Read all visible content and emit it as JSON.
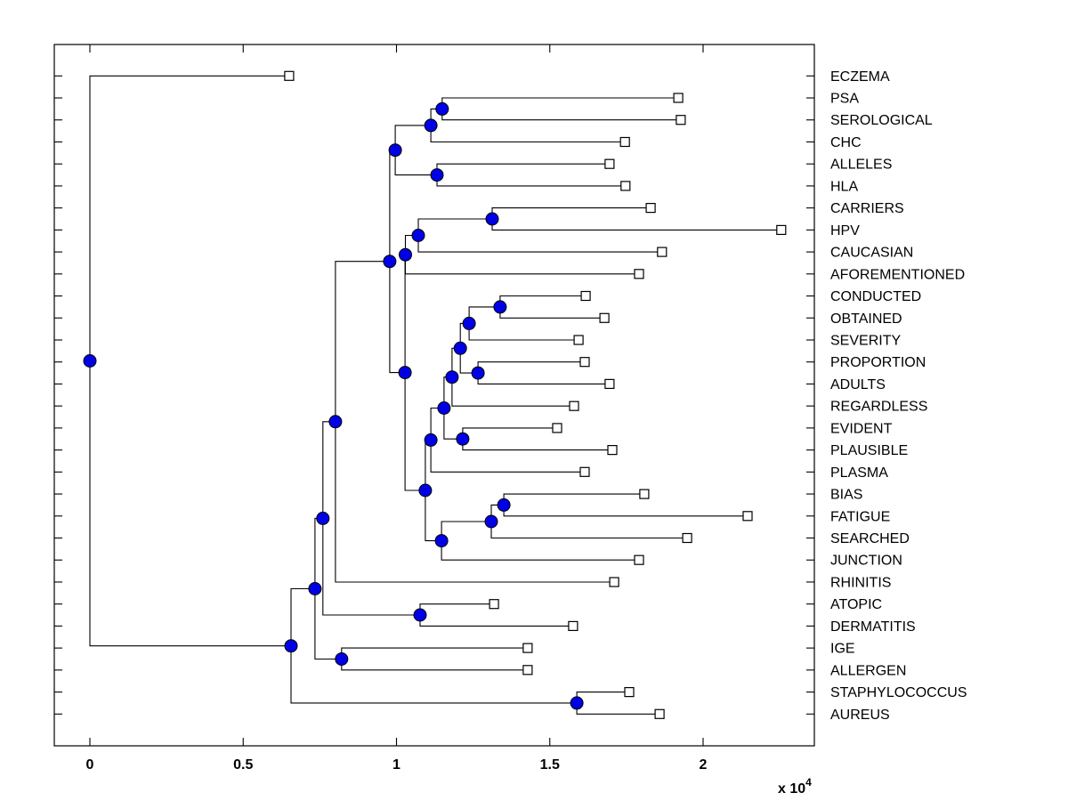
{
  "figure": {
    "background": "#ffffff",
    "line_color": "#000000",
    "internal_node_marker": {
      "shape": "circle",
      "fill": "#0000e6",
      "stroke": "#000000"
    },
    "leaf_marker": {
      "shape": "square",
      "fill": "#ffffff",
      "stroke": "#000000"
    }
  },
  "chart_data": {
    "type": "dendrogram",
    "orientation": "left_to_right",
    "x_axis": {
      "tick_labels": [
        "0",
        "0.5",
        "1",
        "1.5",
        "2"
      ],
      "tick_values": [
        0,
        0.5,
        1,
        1.5,
        2
      ],
      "multiplier_base": "x 10",
      "multiplier_exponent": "4",
      "range": [
        0,
        2.36
      ],
      "units_scale": 10000
    },
    "y_axis": {
      "tick_per_leaf": true,
      "leaf_count": 30
    },
    "leaf_labels": [
      "ECZEMA",
      "PSA",
      "SEROLOGICAL",
      "CHC",
      "ALLELES",
      "HLA",
      "CARRIERS",
      "HPV",
      "CAUCASIAN",
      "AFOREMENTIONED",
      "CONDUCTED",
      "OBTAINED",
      "SEVERITY",
      "PROPORTION",
      "ADULTS",
      "REGARDLESS",
      "EVIDENT",
      "PLAUSIBLE",
      "PLASMA",
      "BIAS",
      "FATIGUE",
      "SEARCHED",
      "JUNCTION",
      "RHINITIS",
      "ATOPIC",
      "DERMATITIS",
      "IGE",
      "ALLERGEN",
      "STAPHYLOCOCCUS",
      "AUREUS"
    ],
    "tree": {
      "x": 0.0,
      "children": [
        {
          "label": "ECZEMA",
          "x": 0.65
        },
        {
          "x": 0.656,
          "children": [
            {
              "x": 0.734,
              "children": [
                {
                  "x": 0.76,
                  "children": [
                    {
                      "x": 0.801,
                      "children": [
                        {
                          "x": 0.978,
                          "children": [
                            {
                              "x": 0.996,
                              "children": [
                                {
                                  "x": 1.112,
                                  "children": [
                                    {
                                      "x": 1.149,
                                      "children": [
                                        {
                                          "label": "PSA",
                                          "x": 1.919
                                        },
                                        {
                                          "label": "SEROLOGICAL",
                                          "x": 1.927
                                        }
                                      ]
                                    },
                                    {
                                      "label": "CHC",
                                      "x": 1.745
                                    }
                                  ]
                                },
                                {
                                  "x": 1.132,
                                  "children": [
                                    {
                                      "label": "ALLELES",
                                      "x": 1.695
                                    },
                                    {
                                      "label": "HLA",
                                      "x": 1.747
                                    }
                                  ]
                                }
                              ]
                            },
                            {
                              "x": 1.028,
                              "children": [
                                {
                                  "x": 1.029,
                                  "children": [
                                    {
                                      "x": 1.071,
                                      "children": [
                                        {
                                          "x": 1.312,
                                          "children": [
                                            {
                                              "label": "CARRIERS",
                                              "x": 1.829
                                            },
                                            {
                                              "label": "HPV",
                                              "x": 2.255
                                            }
                                          ]
                                        },
                                        {
                                          "label": "CAUCASIAN",
                                          "x": 1.866
                                        }
                                      ]
                                    },
                                    {
                                      "label": "AFOREMENTIONED",
                                      "x": 1.791
                                    }
                                  ]
                                },
                                {
                                  "x": 1.094,
                                  "children": [
                                    {
                                      "x": 1.112,
                                      "children": [
                                        {
                                          "x": 1.155,
                                          "children": [
                                            {
                                              "x": 1.181,
                                              "children": [
                                                {
                                                  "x": 1.208,
                                                  "children": [
                                                    {
                                                      "x": 1.237,
                                                      "children": [
                                                        {
                                                          "x": 1.338,
                                                          "children": [
                                                            {
                                                              "label": "CONDUCTED",
                                                              "x": 1.617
                                                            },
                                                            {
                                                              "label": "OBTAINED",
                                                              "x": 1.678
                                                            }
                                                          ]
                                                        },
                                                        {
                                                          "label": "SEVERITY",
                                                          "x": 1.594
                                                        }
                                                      ]
                                                    },
                                                    {
                                                      "x": 1.266,
                                                      "children": [
                                                        {
                                                          "label": "PROPORTION",
                                                          "x": 1.614
                                                        },
                                                        {
                                                          "label": "ADULTS",
                                                          "x": 1.695
                                                        }
                                                      ]
                                                    }
                                                  ]
                                                },
                                                {
                                                  "label": "REGARDLESS",
                                                  "x": 1.579
                                                }
                                              ]
                                            },
                                            {
                                              "x": 1.216,
                                              "children": [
                                                {
                                                  "label": "EVIDENT",
                                                  "x": 1.524
                                                },
                                                {
                                                  "label": "PLAUSIBLE",
                                                  "x": 1.704
                                                }
                                              ]
                                            }
                                          ]
                                        },
                                        {
                                          "label": "PLASMA",
                                          "x": 1.614
                                        }
                                      ]
                                    },
                                    {
                                      "x": 1.147,
                                      "children": [
                                        {
                                          "x": 1.309,
                                          "children": [
                                            {
                                              "x": 1.35,
                                              "children": [
                                                {
                                                  "label": "BIAS",
                                                  "x": 1.808
                                                },
                                                {
                                                  "label": "FATIGUE",
                                                  "x": 2.145
                                                }
                                              ]
                                            },
                                            {
                                              "label": "SEARCHED",
                                              "x": 1.948
                                            }
                                          ]
                                        },
                                        {
                                          "label": "JUNCTION",
                                          "x": 1.791
                                        }
                                      ]
                                    }
                                  ]
                                }
                              ]
                            }
                          ]
                        },
                        {
                          "label": "RHINITIS",
                          "x": 1.71
                        }
                      ]
                    },
                    {
                      "x": 1.077,
                      "children": [
                        {
                          "label": "ATOPIC",
                          "x": 1.318
                        },
                        {
                          "label": "DERMATITIS",
                          "x": 1.576
                        }
                      ]
                    }
                  ]
                },
                {
                  "x": 0.821,
                  "children": [
                    {
                      "label": "IGE",
                      "x": 1.428
                    },
                    {
                      "label": "ALLERGEN",
                      "x": 1.428
                    }
                  ]
                }
              ]
            },
            {
              "x": 1.588,
              "children": [
                {
                  "label": "STAPHYLOCOCCUS",
                  "x": 1.759
                },
                {
                  "label": "AUREUS",
                  "x": 1.858
                }
              ]
            }
          ]
        }
      ]
    }
  }
}
